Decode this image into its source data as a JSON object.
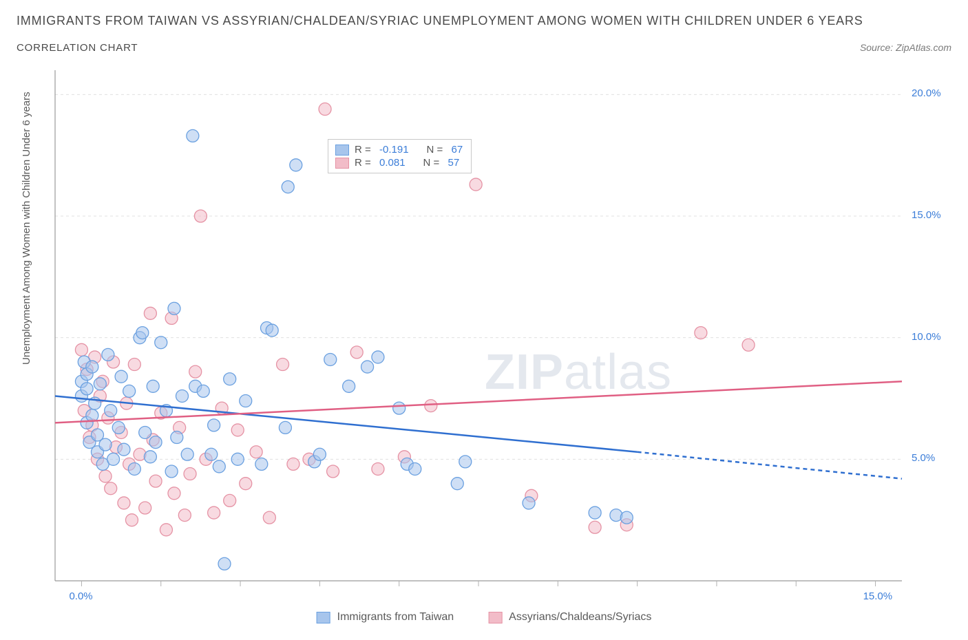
{
  "title": "IMMIGRANTS FROM TAIWAN VS ASSYRIAN/CHALDEAN/SYRIAC UNEMPLOYMENT AMONG WOMEN WITH CHILDREN UNDER 6 YEARS",
  "subtitle": "CORRELATION CHART",
  "source_prefix": "Source: ",
  "source": "ZipAtlas.com",
  "watermark_bold": "ZIP",
  "watermark_light": "atlas",
  "chart": {
    "type": "scatter",
    "ylabel": "Unemployment Among Women with Children Under 6 years",
    "background_color": "#ffffff",
    "grid_color": "#e0e0e0",
    "grid_dash": "4,4",
    "axis_color": "#9a9a9a",
    "tick_color": "#b0b0b0",
    "label_color": "#3b7dd8",
    "xlim": [
      -0.5,
      15.5
    ],
    "ylim": [
      0,
      21
    ],
    "xtick_labels": [
      {
        "v": 0,
        "t": "0.0%"
      },
      {
        "v": 15,
        "t": "15.0%"
      }
    ],
    "xtick_marks": [
      0,
      1.5,
      3,
      4.5,
      6,
      7.5,
      9,
      10.5,
      12,
      13.5,
      15
    ],
    "ytick_labels": [
      {
        "v": 5,
        "t": "5.0%"
      },
      {
        "v": 10,
        "t": "10.0%"
      },
      {
        "v": 15,
        "t": "15.0%"
      },
      {
        "v": 20,
        "t": "20.0%"
      }
    ],
    "ygrid": [
      5,
      10,
      15,
      20
    ],
    "marker_radius": 9,
    "marker_opacity": 0.55,
    "line_width": 2.5,
    "series": [
      {
        "name": "Immigrants from Taiwan",
        "color_fill": "#a7c5ec",
        "color_stroke": "#6aa0e0",
        "swatch_fill": "#a7c5ec",
        "swatch_border": "#6aa0e0",
        "trend_color": "#2f6fd0",
        "R": "-0.191",
        "N": "67",
        "trend_solid": {
          "x1": -0.5,
          "y1": 7.6,
          "x2": 10.5,
          "y2": 5.3
        },
        "trend_dash": {
          "x1": 10.5,
          "y1": 5.3,
          "x2": 15.5,
          "y2": 4.2
        },
        "points": [
          [
            0.0,
            8.2
          ],
          [
            0.0,
            7.6
          ],
          [
            0.05,
            9.0
          ],
          [
            0.1,
            6.5
          ],
          [
            0.1,
            7.9
          ],
          [
            0.1,
            8.5
          ],
          [
            0.15,
            5.7
          ],
          [
            0.2,
            8.8
          ],
          [
            0.2,
            6.8
          ],
          [
            0.25,
            7.3
          ],
          [
            0.3,
            5.3
          ],
          [
            0.3,
            6.0
          ],
          [
            0.35,
            8.1
          ],
          [
            0.4,
            4.8
          ],
          [
            0.45,
            5.6
          ],
          [
            0.5,
            9.3
          ],
          [
            0.55,
            7.0
          ],
          [
            0.6,
            5.0
          ],
          [
            0.7,
            6.3
          ],
          [
            0.75,
            8.4
          ],
          [
            0.8,
            5.4
          ],
          [
            0.9,
            7.8
          ],
          [
            1.0,
            4.6
          ],
          [
            1.1,
            10.0
          ],
          [
            1.15,
            10.2
          ],
          [
            1.2,
            6.1
          ],
          [
            1.3,
            5.1
          ],
          [
            1.35,
            8.0
          ],
          [
            1.4,
            5.7
          ],
          [
            1.5,
            9.8
          ],
          [
            1.6,
            7.0
          ],
          [
            1.7,
            4.5
          ],
          [
            1.75,
            11.2
          ],
          [
            1.8,
            5.9
          ],
          [
            1.9,
            7.6
          ],
          [
            2.0,
            5.2
          ],
          [
            2.1,
            18.3
          ],
          [
            2.15,
            8.0
          ],
          [
            2.3,
            7.8
          ],
          [
            2.45,
            5.2
          ],
          [
            2.5,
            6.4
          ],
          [
            2.6,
            4.7
          ],
          [
            2.7,
            0.7
          ],
          [
            2.8,
            8.3
          ],
          [
            2.95,
            5.0
          ],
          [
            3.1,
            7.4
          ],
          [
            3.4,
            4.8
          ],
          [
            3.5,
            10.4
          ],
          [
            3.6,
            10.3
          ],
          [
            3.85,
            6.3
          ],
          [
            3.9,
            16.2
          ],
          [
            4.05,
            17.1
          ],
          [
            4.4,
            4.9
          ],
          [
            4.5,
            5.2
          ],
          [
            4.7,
            9.1
          ],
          [
            5.05,
            8.0
          ],
          [
            5.4,
            8.8
          ],
          [
            5.6,
            9.2
          ],
          [
            6.0,
            7.1
          ],
          [
            6.15,
            4.8
          ],
          [
            6.3,
            4.6
          ],
          [
            7.1,
            4.0
          ],
          [
            7.25,
            4.9
          ],
          [
            8.45,
            3.2
          ],
          [
            9.7,
            2.8
          ],
          [
            10.1,
            2.7
          ],
          [
            10.3,
            2.6
          ]
        ]
      },
      {
        "name": "Assyrians/Chaldeans/Syriacs",
        "color_fill": "#f2bcc8",
        "color_stroke": "#e592a4",
        "swatch_fill": "#f2bcc8",
        "swatch_border": "#e592a4",
        "trend_color": "#e05f83",
        "R": "0.081",
        "N": "57",
        "trend_solid": {
          "x1": -0.5,
          "y1": 6.5,
          "x2": 15.5,
          "y2": 8.2
        },
        "points": [
          [
            0.0,
            9.5
          ],
          [
            0.05,
            7.0
          ],
          [
            0.1,
            8.7
          ],
          [
            0.15,
            5.9
          ],
          [
            0.2,
            6.4
          ],
          [
            0.25,
            9.2
          ],
          [
            0.3,
            5.0
          ],
          [
            0.35,
            7.6
          ],
          [
            0.4,
            8.2
          ],
          [
            0.45,
            4.3
          ],
          [
            0.5,
            6.7
          ],
          [
            0.55,
            3.8
          ],
          [
            0.6,
            9.0
          ],
          [
            0.65,
            5.5
          ],
          [
            0.75,
            6.1
          ],
          [
            0.8,
            3.2
          ],
          [
            0.85,
            7.3
          ],
          [
            0.9,
            4.8
          ],
          [
            0.95,
            2.5
          ],
          [
            1.0,
            8.9
          ],
          [
            1.1,
            5.2
          ],
          [
            1.2,
            3.0
          ],
          [
            1.3,
            11.0
          ],
          [
            1.35,
            5.8
          ],
          [
            1.4,
            4.1
          ],
          [
            1.5,
            6.9
          ],
          [
            1.6,
            2.1
          ],
          [
            1.7,
            10.8
          ],
          [
            1.75,
            3.6
          ],
          [
            1.85,
            6.3
          ],
          [
            1.95,
            2.7
          ],
          [
            2.05,
            4.4
          ],
          [
            2.15,
            8.6
          ],
          [
            2.25,
            15.0
          ],
          [
            2.35,
            5.0
          ],
          [
            2.5,
            2.8
          ],
          [
            2.65,
            7.1
          ],
          [
            2.8,
            3.3
          ],
          [
            2.95,
            6.2
          ],
          [
            3.1,
            4.0
          ],
          [
            3.3,
            5.3
          ],
          [
            3.55,
            2.6
          ],
          [
            3.8,
            8.9
          ],
          [
            4.0,
            4.8
          ],
          [
            4.3,
            5.0
          ],
          [
            4.6,
            19.4
          ],
          [
            4.75,
            4.5
          ],
          [
            5.2,
            9.4
          ],
          [
            5.6,
            4.6
          ],
          [
            6.1,
            5.1
          ],
          [
            6.6,
            7.2
          ],
          [
            7.45,
            16.3
          ],
          [
            8.5,
            3.5
          ],
          [
            9.7,
            2.2
          ],
          [
            10.3,
            2.3
          ],
          [
            11.7,
            10.2
          ],
          [
            12.6,
            9.7
          ]
        ]
      }
    ],
    "legend_r_label": "R =",
    "legend_n_label": "N ="
  },
  "legend_bottom": [
    {
      "label": "Immigrants from Taiwan",
      "fill": "#a7c5ec",
      "border": "#6aa0e0"
    },
    {
      "label": "Assyrians/Chaldeans/Syriacs",
      "fill": "#f2bcc8",
      "border": "#e592a4"
    }
  ]
}
